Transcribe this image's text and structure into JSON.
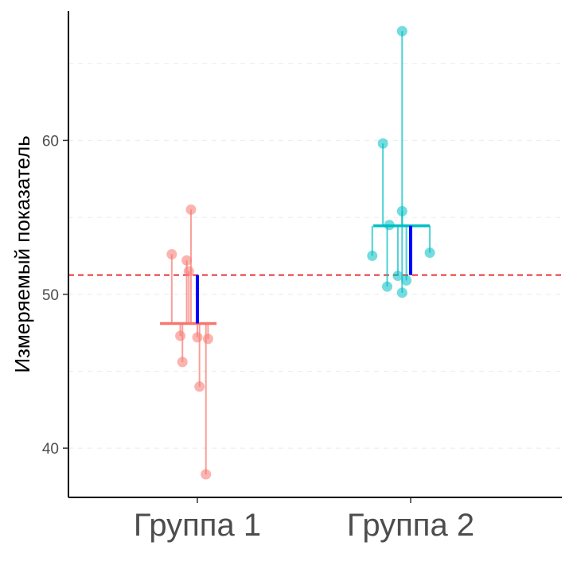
{
  "chart_data": {
    "type": "scatter",
    "ylabel": "Измеряемый показатель",
    "categories": [
      "Группа 1",
      "Группа 2"
    ],
    "yticks": [
      40,
      50,
      60
    ],
    "ylim": [
      36.8,
      68.4
    ],
    "grand_mean": 51.25,
    "grid": "horizontal-dashed",
    "colors": {
      "group1": "#F8766D",
      "group2": "#00BFC4",
      "mean_diff": "#0000FF",
      "grand_mean_line": "#E41A1C"
    },
    "groups": [
      {
        "category": "Группа 1",
        "mean": 48.1,
        "points": [
          {
            "x": -0.12,
            "y": 52.6
          },
          {
            "x": -0.08,
            "y": 47.3
          },
          {
            "x": -0.07,
            "y": 45.6
          },
          {
            "x": -0.05,
            "y": 52.2
          },
          {
            "x": -0.04,
            "y": 51.5
          },
          {
            "x": -0.03,
            "y": 55.5
          },
          {
            "x": 0.0,
            "y": 47.2
          },
          {
            "x": 0.01,
            "y": 44.0
          },
          {
            "x": 0.04,
            "y": 38.3
          },
          {
            "x": 0.05,
            "y": 47.1
          }
        ]
      },
      {
        "category": "Группа 2",
        "mean": 54.45,
        "points": [
          {
            "x": -0.18,
            "y": 52.5
          },
          {
            "x": -0.13,
            "y": 59.8
          },
          {
            "x": -0.11,
            "y": 50.5
          },
          {
            "x": -0.1,
            "y": 54.5
          },
          {
            "x": -0.06,
            "y": 51.2
          },
          {
            "x": -0.04,
            "y": 55.4
          },
          {
            "x": -0.04,
            "y": 67.1
          },
          {
            "x": -0.04,
            "y": 50.1
          },
          {
            "x": -0.02,
            "y": 50.9
          },
          {
            "x": 0.09,
            "y": 52.7
          }
        ]
      }
    ]
  }
}
